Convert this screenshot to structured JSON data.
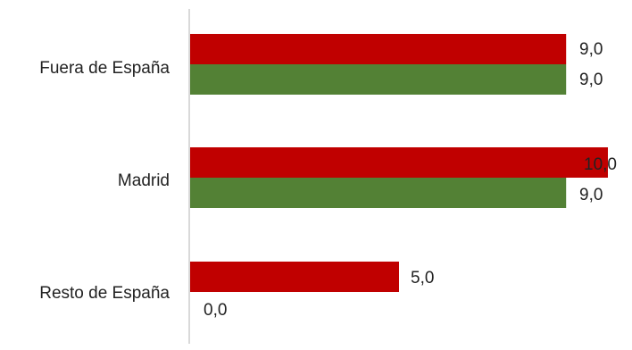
{
  "chart_data": {
    "type": "bar",
    "orientation": "horizontal",
    "categories": [
      "Fuera de España",
      "Madrid",
      "Resto de España"
    ],
    "series": [
      {
        "values": [
          9.0,
          10.0,
          5.0
        ],
        "labels": [
          "9,0",
          "10,0",
          "5,0"
        ],
        "color": "#c00000"
      },
      {
        "values": [
          9.0,
          9.0,
          0.0
        ],
        "labels": [
          "9,0",
          "9,0",
          "0,0"
        ],
        "color": "#538135"
      }
    ],
    "xlim": [
      0,
      10
    ],
    "grid": false,
    "legend": "none"
  }
}
